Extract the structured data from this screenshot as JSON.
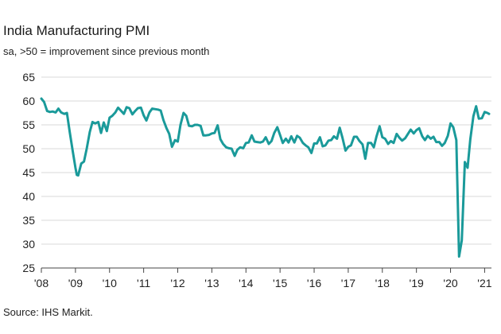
{
  "chart_data": {
    "type": "line",
    "title": "India Manufacturing PMI",
    "subtitle": "sa, >50 = improvement since previous month",
    "source": "Source: IHS Markit.",
    "xlabel": "",
    "ylabel": "",
    "ylim": [
      25,
      65
    ],
    "yticks": [
      25,
      30,
      35,
      40,
      45,
      50,
      55,
      60,
      65
    ],
    "xlim": [
      2008.0,
      2021.2
    ],
    "xticks": [
      {
        "value": 2008,
        "label": "'08"
      },
      {
        "value": 2009,
        "label": "'09"
      },
      {
        "value": 2010,
        "label": "'10"
      },
      {
        "value": 2011,
        "label": "'11"
      },
      {
        "value": 2012,
        "label": "'12"
      },
      {
        "value": 2013,
        "label": "'13"
      },
      {
        "value": 2014,
        "label": "'14"
      },
      {
        "value": 2015,
        "label": "'15"
      },
      {
        "value": 2016,
        "label": "'16"
      },
      {
        "value": 2017,
        "label": "'17"
      },
      {
        "value": 2018,
        "label": "'18"
      },
      {
        "value": 2019,
        "label": "'19"
      },
      {
        "value": 2020,
        "label": "'20"
      },
      {
        "value": 2021,
        "label": "'21"
      }
    ],
    "grid": true,
    "color": "#1a9a9a",
    "series": [
      {
        "name": "India Manufacturing PMI",
        "points": [
          [
            2008.0,
            60.5
          ],
          [
            2008.08,
            59.8
          ],
          [
            2008.17,
            57.9
          ],
          [
            2008.25,
            57.7
          ],
          [
            2008.33,
            57.8
          ],
          [
            2008.42,
            57.6
          ],
          [
            2008.5,
            58.4
          ],
          [
            2008.58,
            57.6
          ],
          [
            2008.67,
            57.3
          ],
          [
            2008.75,
            57.5
          ],
          [
            2008.83,
            53.6
          ],
          [
            2008.92,
            49.5
          ],
          [
            2009.0,
            46.0
          ],
          [
            2009.04,
            44.5
          ],
          [
            2009.08,
            44.4
          ],
          [
            2009.17,
            46.9
          ],
          [
            2009.25,
            47.3
          ],
          [
            2009.33,
            50.0
          ],
          [
            2009.42,
            53.5
          ],
          [
            2009.5,
            55.6
          ],
          [
            2009.58,
            55.3
          ],
          [
            2009.67,
            55.6
          ],
          [
            2009.75,
            53.3
          ],
          [
            2009.83,
            55.5
          ],
          [
            2009.92,
            53.7
          ],
          [
            2010.0,
            56.5
          ],
          [
            2010.08,
            56.9
          ],
          [
            2010.17,
            57.6
          ],
          [
            2010.25,
            58.6
          ],
          [
            2010.33,
            58.0
          ],
          [
            2010.42,
            57.3
          ],
          [
            2010.5,
            58.7
          ],
          [
            2010.58,
            58.5
          ],
          [
            2010.67,
            57.2
          ],
          [
            2010.75,
            57.9
          ],
          [
            2010.83,
            58.5
          ],
          [
            2010.92,
            58.6
          ],
          [
            2011.0,
            57.0
          ],
          [
            2011.08,
            55.9
          ],
          [
            2011.17,
            57.6
          ],
          [
            2011.25,
            58.4
          ],
          [
            2011.33,
            58.3
          ],
          [
            2011.42,
            58.2
          ],
          [
            2011.5,
            58.0
          ],
          [
            2011.58,
            56.0
          ],
          [
            2011.67,
            54.3
          ],
          [
            2011.75,
            53.1
          ],
          [
            2011.83,
            50.4
          ],
          [
            2011.92,
            51.8
          ],
          [
            2012.0,
            51.5
          ],
          [
            2012.08,
            55.0
          ],
          [
            2012.17,
            57.5
          ],
          [
            2012.25,
            56.9
          ],
          [
            2012.33,
            54.8
          ],
          [
            2012.42,
            54.7
          ],
          [
            2012.5,
            55.0
          ],
          [
            2012.58,
            55.0
          ],
          [
            2012.67,
            54.8
          ],
          [
            2012.75,
            52.8
          ],
          [
            2012.83,
            52.8
          ],
          [
            2012.92,
            52.9
          ],
          [
            2013.0,
            53.2
          ],
          [
            2013.08,
            53.3
          ],
          [
            2013.17,
            54.9
          ],
          [
            2013.25,
            52.0
          ],
          [
            2013.33,
            51.0
          ],
          [
            2013.42,
            50.3
          ],
          [
            2013.5,
            50.1
          ],
          [
            2013.58,
            50.0
          ],
          [
            2013.67,
            48.5
          ],
          [
            2013.75,
            49.8
          ],
          [
            2013.83,
            50.3
          ],
          [
            2013.92,
            50.1
          ],
          [
            2014.0,
            51.2
          ],
          [
            2014.08,
            51.3
          ],
          [
            2014.17,
            52.8
          ],
          [
            2014.25,
            51.5
          ],
          [
            2014.33,
            51.4
          ],
          [
            2014.42,
            51.3
          ],
          [
            2014.5,
            51.5
          ],
          [
            2014.58,
            52.4
          ],
          [
            2014.67,
            51.0
          ],
          [
            2014.75,
            51.6
          ],
          [
            2014.83,
            53.3
          ],
          [
            2014.92,
            54.5
          ],
          [
            2015.0,
            52.9
          ],
          [
            2015.08,
            51.2
          ],
          [
            2015.17,
            52.1
          ],
          [
            2015.25,
            51.3
          ],
          [
            2015.33,
            52.6
          ],
          [
            2015.42,
            51.3
          ],
          [
            2015.5,
            52.7
          ],
          [
            2015.58,
            52.3
          ],
          [
            2015.67,
            51.2
          ],
          [
            2015.75,
            50.7
          ],
          [
            2015.83,
            50.3
          ],
          [
            2015.92,
            49.1
          ],
          [
            2016.0,
            51.1
          ],
          [
            2016.08,
            51.1
          ],
          [
            2016.17,
            52.4
          ],
          [
            2016.25,
            50.5
          ],
          [
            2016.33,
            50.7
          ],
          [
            2016.42,
            51.7
          ],
          [
            2016.5,
            51.8
          ],
          [
            2016.58,
            52.6
          ],
          [
            2016.67,
            52.1
          ],
          [
            2016.75,
            54.4
          ],
          [
            2016.83,
            52.3
          ],
          [
            2016.92,
            49.6
          ],
          [
            2017.0,
            50.4
          ],
          [
            2017.08,
            50.7
          ],
          [
            2017.17,
            52.5
          ],
          [
            2017.25,
            52.5
          ],
          [
            2017.33,
            51.6
          ],
          [
            2017.42,
            50.9
          ],
          [
            2017.5,
            47.9
          ],
          [
            2017.58,
            51.2
          ],
          [
            2017.67,
            51.2
          ],
          [
            2017.75,
            50.3
          ],
          [
            2017.83,
            52.6
          ],
          [
            2017.92,
            54.7
          ],
          [
            2018.0,
            52.4
          ],
          [
            2018.08,
            52.1
          ],
          [
            2018.17,
            51.0
          ],
          [
            2018.25,
            51.6
          ],
          [
            2018.33,
            51.2
          ],
          [
            2018.42,
            53.1
          ],
          [
            2018.5,
            52.3
          ],
          [
            2018.58,
            51.7
          ],
          [
            2018.67,
            52.2
          ],
          [
            2018.75,
            53.1
          ],
          [
            2018.83,
            54.0
          ],
          [
            2018.92,
            53.2
          ],
          [
            2019.0,
            53.9
          ],
          [
            2019.08,
            54.3
          ],
          [
            2019.17,
            52.6
          ],
          [
            2019.25,
            51.8
          ],
          [
            2019.33,
            52.7
          ],
          [
            2019.42,
            52.1
          ],
          [
            2019.5,
            52.5
          ],
          [
            2019.58,
            51.4
          ],
          [
            2019.67,
            51.4
          ],
          [
            2019.75,
            50.6
          ],
          [
            2019.83,
            51.2
          ],
          [
            2019.92,
            52.7
          ],
          [
            2020.0,
            55.3
          ],
          [
            2020.08,
            54.5
          ],
          [
            2020.17,
            51.8
          ],
          [
            2020.25,
            27.4
          ],
          [
            2020.33,
            30.8
          ],
          [
            2020.42,
            47.2
          ],
          [
            2020.5,
            46.0
          ],
          [
            2020.58,
            52.0
          ],
          [
            2020.67,
            56.8
          ],
          [
            2020.75,
            58.9
          ],
          [
            2020.83,
            56.3
          ],
          [
            2020.92,
            56.4
          ],
          [
            2021.0,
            57.7
          ],
          [
            2021.08,
            57.5
          ],
          [
            2021.13,
            57.3
          ]
        ]
      }
    ]
  }
}
